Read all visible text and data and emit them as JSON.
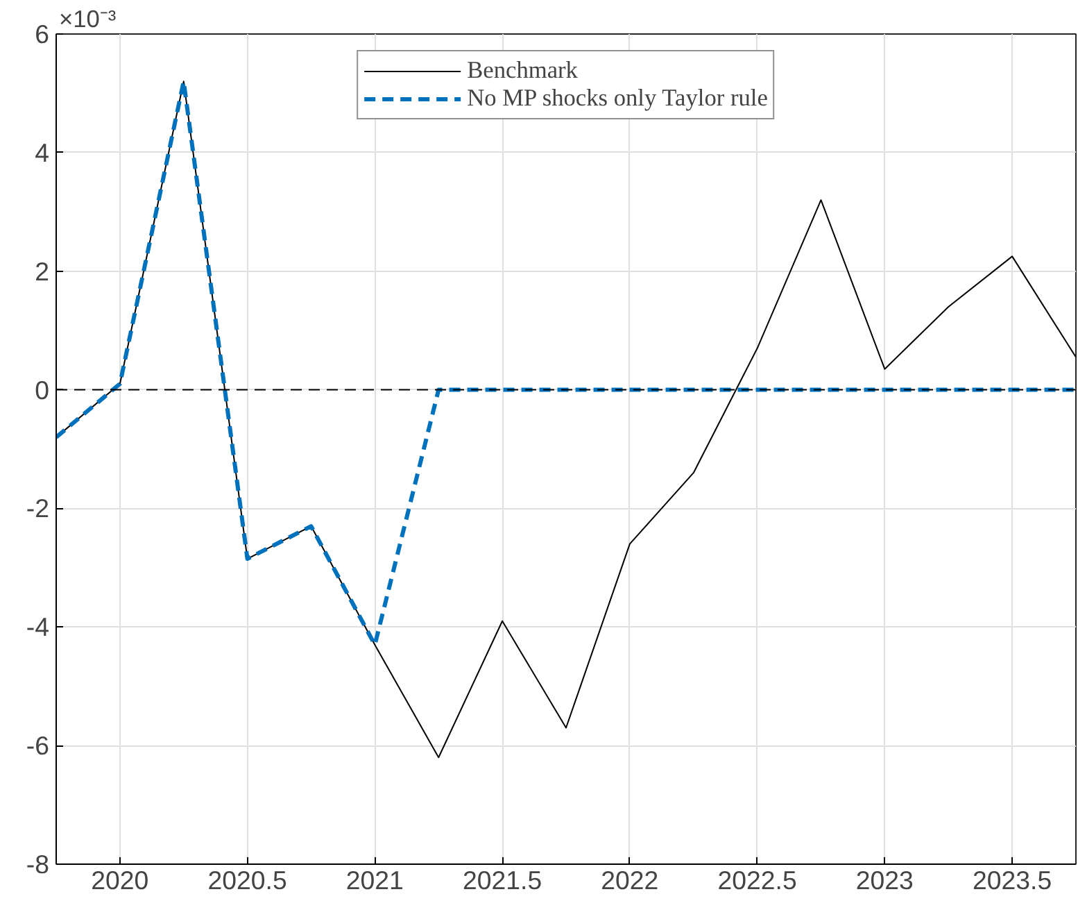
{
  "chart_data": {
    "type": "line",
    "x": [
      2019.75,
      2020,
      2020.25,
      2020.5,
      2020.75,
      2021,
      2021.25,
      2021.5,
      2021.75,
      2022,
      2022.25,
      2022.5,
      2022.75,
      2023,
      2023.25,
      2023.5,
      2023.75
    ],
    "series": [
      {
        "name": "Benchmark",
        "color": "#000000",
        "line_style": "solid",
        "values": [
          -0.8,
          0.1,
          5.2,
          -2.85,
          -2.3,
          -4.3,
          -6.2,
          -3.9,
          -5.7,
          -2.6,
          -1.4,
          0.7,
          3.2,
          0.35,
          1.4,
          2.25,
          0.55
        ]
      },
      {
        "name": "No MP shocks only Taylor rule",
        "color": "#0072bd",
        "line_style": "dashed",
        "values": [
          -0.8,
          0.1,
          5.2,
          -2.85,
          -2.3,
          -4.3,
          0,
          0,
          0,
          0,
          0,
          0,
          0,
          0,
          0,
          0,
          0
        ]
      }
    ],
    "xlim": [
      2019.75,
      2023.75
    ],
    "xticks": [
      2020,
      2020.5,
      2021,
      2021.5,
      2022,
      2022.5,
      2023,
      2023.5
    ],
    "ylim": [
      -8,
      6
    ],
    "yticks": [
      -8,
      -6,
      -4,
      -2,
      0,
      2,
      4,
      6
    ],
    "ref_lines": [
      {
        "axis": "y",
        "value": 0,
        "color": "#000000",
        "line_style": "dashed"
      }
    ],
    "annotations": [
      "×10⁻³"
    ],
    "grid": true,
    "legend": "top",
    "marker": "none"
  }
}
